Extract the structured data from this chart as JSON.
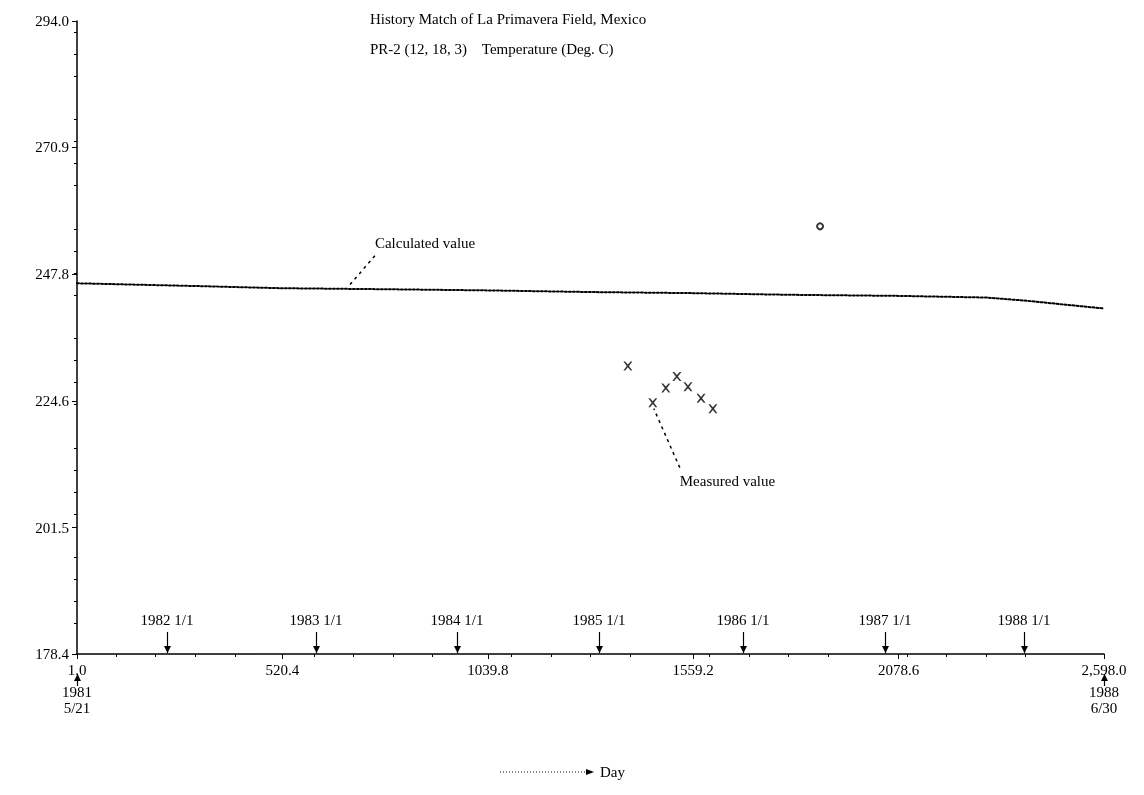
{
  "chart_data": {
    "type": "line",
    "title": "History Match of La Primavera Field, Mexico",
    "subtitle": "PR-2 (12, 18, 3)    Temperature (Deg. C)",
    "xlim": [
      1,
      2598
    ],
    "xticks": [
      {
        "value": 1,
        "label": "1.0"
      },
      520.4,
      1039.8,
      1559.2,
      2078.6,
      {
        "value": 2598,
        "label": "2,598.0"
      }
    ],
    "ylim": [
      178.4,
      294
    ],
    "yticks": [
      178.4,
      201.5,
      224.6,
      247.8,
      270.9,
      {
        "value": 294,
        "label": "294.0"
      }
    ],
    "grid": false,
    "legend": false,
    "series": [
      {
        "color": "#000000",
        "line_style": "dotted",
        "marker": "none",
        "x": [
          1,
          300,
          520,
          800,
          1040,
          1300,
          1560,
          1800,
          2078,
          2300,
          2405,
          2500,
          2598
        ],
        "values": [
          246.1,
          245.6,
          245.2,
          245.0,
          244.8,
          244.5,
          244.3,
          244.0,
          243.8,
          243.5,
          242.9,
          242.2,
          241.5
        ]
      },
      {
        "type": "scatter",
        "color": "#000000",
        "marker": "cross",
        "x": [
          1394,
          1457,
          1490,
          1518,
          1546,
          1579,
          1609
        ],
        "values": [
          231.0,
          224.3,
          227.0,
          229.1,
          227.2,
          225.1,
          223.2
        ]
      },
      {
        "type": "scatter",
        "color": "#000000",
        "marker": "circle",
        "x": [
          1880
        ],
        "values": [
          256.5
        ]
      }
    ],
    "annotations": [
      {
        "text": "Calculated value",
        "x": 686,
        "y": 245.1
      },
      {
        "text": "Measured value",
        "x": 1457,
        "y": 224.3
      },
      "1982 1/1",
      "1983 1/1",
      "1984 1/1",
      "1985 1/1",
      "1986 1/1",
      "1987 1/1",
      "1988 1/1",
      "1981\n5/21",
      "1988\n6/30",
      "Day"
    ]
  }
}
